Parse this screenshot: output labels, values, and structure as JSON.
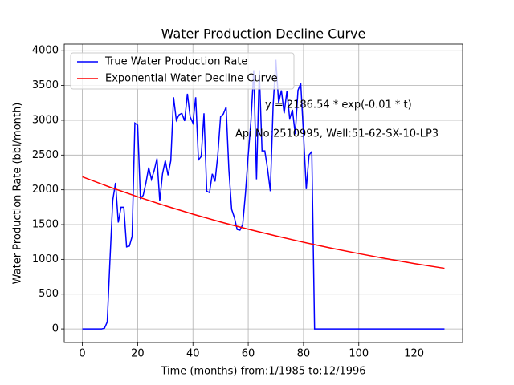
{
  "chart_data": {
    "type": "line",
    "title": "Water Production Decline Curve",
    "xlabel": "Time (months) from:1/1985 to:12/1996",
    "ylabel": "Water Production Rate (bbl/month)",
    "annotations": [
      "y = 2186.54 * exp(-0.01 * t)",
      "Api No:2510995, Well:51-62-SX-10-LP3"
    ],
    "xlim": [
      -6.55,
      137.55
    ],
    "ylim": [
      -195,
      4095
    ],
    "xticks": [
      0,
      20,
      40,
      60,
      80,
      100,
      120
    ],
    "yticks": [
      0,
      500,
      1000,
      1500,
      2000,
      2500,
      3000,
      3500,
      4000
    ],
    "grid": true,
    "legend": "upper left",
    "series": [
      {
        "name": "True Water Production Rate",
        "color": "#0000ff",
        "x": [
          0,
          1,
          2,
          3,
          4,
          5,
          6,
          7,
          8,
          9,
          10,
          11,
          12,
          13,
          14,
          15,
          16,
          17,
          18,
          19,
          20,
          21,
          22,
          23,
          24,
          25,
          26,
          27,
          28,
          29,
          30,
          31,
          32,
          33,
          34,
          35,
          36,
          37,
          38,
          39,
          40,
          41,
          42,
          43,
          44,
          45,
          46,
          47,
          48,
          49,
          50,
          51,
          52,
          53,
          54,
          55,
          56,
          57,
          58,
          59,
          60,
          61,
          62,
          63,
          64,
          65,
          66,
          67,
          68,
          69,
          70,
          71,
          72,
          73,
          74,
          75,
          76,
          77,
          78,
          79,
          80,
          81,
          82,
          83,
          84,
          85,
          86,
          87,
          88,
          89,
          90,
          91,
          92,
          93,
          94,
          95,
          96,
          97,
          98,
          99,
          100,
          101,
          102,
          103,
          104,
          105,
          106,
          107,
          108,
          109,
          110,
          111,
          112,
          113,
          114,
          115,
          116,
          117,
          118,
          119,
          120,
          121,
          122,
          123,
          124,
          125,
          126,
          127,
          128,
          129,
          130,
          131
        ],
        "values": [
          0,
          0,
          0,
          0,
          0,
          0,
          0,
          0,
          10,
          100,
          1000,
          1850,
          2100,
          1530,
          1750,
          1750,
          1180,
          1190,
          1330,
          2960,
          2930,
          1880,
          1920,
          2100,
          2320,
          2150,
          2280,
          2450,
          1840,
          2230,
          2420,
          2210,
          2420,
          3330,
          3000,
          3080,
          3100,
          2990,
          3380,
          3050,
          2960,
          3330,
          2430,
          2480,
          3100,
          1980,
          1960,
          2230,
          2120,
          2500,
          3050,
          3090,
          3190,
          2290,
          1720,
          1600,
          1430,
          1420,
          1500,
          1950,
          2500,
          3000,
          3720,
          2150,
          3720,
          2560,
          2560,
          2300,
          1980,
          3200,
          3870,
          3250,
          3430,
          3100,
          3420,
          3020,
          3150,
          2800,
          3430,
          3530,
          2800,
          2010,
          2500,
          2550,
          0,
          0,
          0,
          0,
          0,
          0,
          0,
          0,
          0,
          0,
          0,
          0,
          0,
          0,
          0,
          0,
          0,
          0,
          0,
          0,
          0,
          0,
          0,
          0,
          0,
          0,
          0,
          0,
          0,
          0,
          0,
          0,
          0,
          0,
          0,
          0,
          0,
          0,
          0,
          0,
          0,
          0,
          0,
          0,
          0,
          0,
          0,
          0
        ]
      },
      {
        "name": "Exponential Water Decline Curve",
        "color": "#ff0000",
        "x": [
          0,
          10,
          20,
          30,
          40,
          50,
          60,
          70,
          80,
          90,
          100,
          110,
          120,
          131
        ],
        "values": [
          2187,
          2038,
          1900,
          1771,
          1650,
          1538,
          1434,
          1337,
          1246,
          1161,
          1083,
          1009,
          940,
          871
        ]
      }
    ]
  }
}
